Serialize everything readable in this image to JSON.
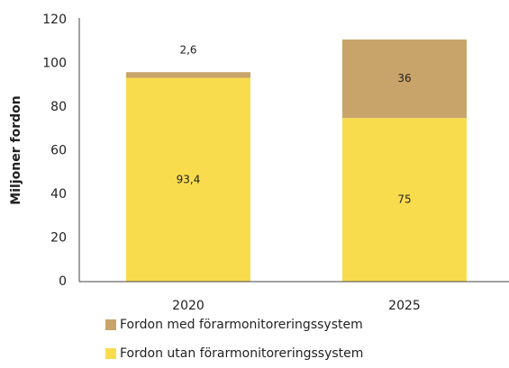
{
  "chart_data": {
    "type": "stacked_bar",
    "y_label": "Miljoner fordon",
    "categories": [
      "2020",
      "2025"
    ],
    "series": [
      {
        "name": "Fordon utan förarmonitoreringssystem",
        "color": "#f8dc4e",
        "values": [
          93.4,
          75
        ],
        "value_labels": [
          "93,4",
          "75"
        ]
      },
      {
        "name": "Fordon med förarmonitoreringssystem",
        "color": "#c9a46a",
        "values": [
          2.6,
          36
        ],
        "value_labels": [
          "2,6",
          "36"
        ]
      }
    ],
    "ylim": [
      0,
      120
    ],
    "yticks": [
      0,
      20,
      40,
      60,
      80,
      100,
      120
    ],
    "grid": false,
    "legend": "bottom"
  }
}
